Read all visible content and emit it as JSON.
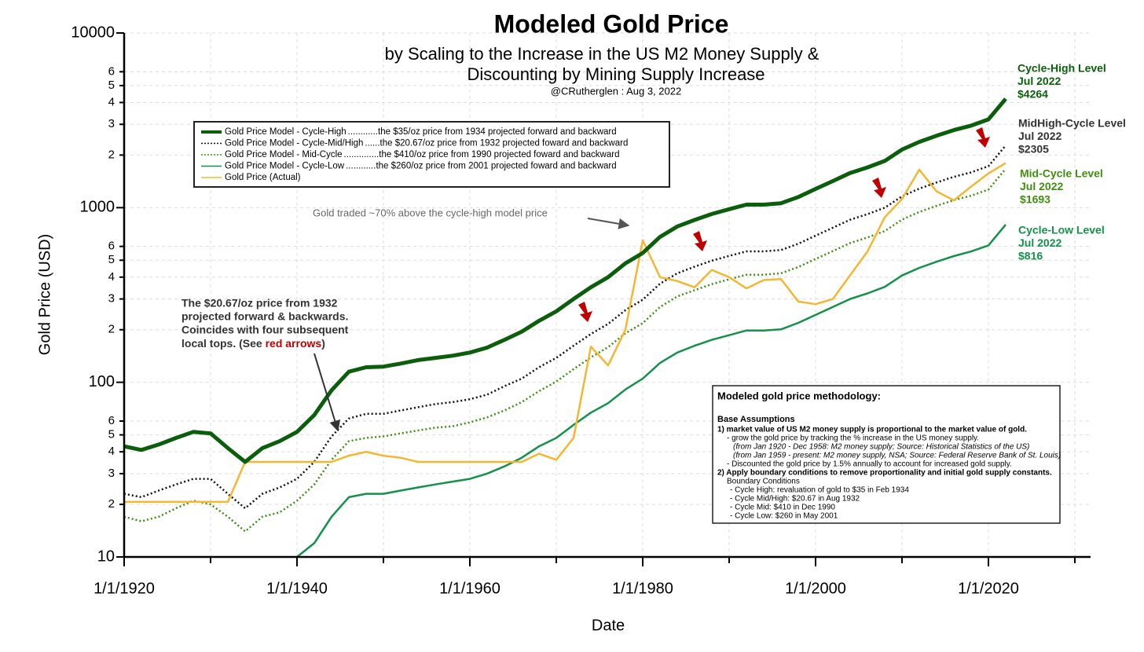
{
  "chart_data": {
    "type": "line",
    "title": "Modeled Gold Price",
    "subtitle_lines": [
      "by Scaling to the Increase in the US M2 Money Supply &",
      "Discounting by Mining Supply Increase"
    ],
    "author": "@CRutherglen : Aug 3, 2022",
    "x_label": "Date",
    "y_label": "Gold Price (USD)",
    "log_y": true,
    "grid": true,
    "xlim": [
      "1/1/1920",
      "1/1/2031"
    ],
    "xticks": [
      "1/1/1920",
      "1/1/1940",
      "1/1/1960",
      "1/1/1980",
      "1/1/2000",
      "1/1/2020"
    ],
    "xminorticks": [
      "1/1/1930",
      "1/1/1950",
      "1/1/1970",
      "1/1/1990",
      "1/1/2010",
      "1/1/2030"
    ],
    "ylim": [
      10,
      10000
    ],
    "yticks": [
      10,
      {
        "value": 20,
        "label": "2"
      },
      {
        "value": 30,
        "label": "3"
      },
      {
        "value": 40,
        "label": "4"
      },
      {
        "value": 50,
        "label": "5"
      },
      {
        "value": 60,
        "label": "6"
      },
      100,
      {
        "value": 200,
        "label": "2"
      },
      {
        "value": 300,
        "label": "3"
      },
      {
        "value": 400,
        "label": "4"
      },
      {
        "value": 500,
        "label": "5"
      },
      {
        "value": 600,
        "label": "6"
      },
      1000,
      {
        "value": 2000,
        "label": "2"
      },
      {
        "value": 3000,
        "label": "3"
      },
      {
        "value": 4000,
        "label": "4"
      },
      {
        "value": 5000,
        "label": "5"
      },
      {
        "value": 6000,
        "label": "6"
      },
      10000
    ],
    "x": [
      "1/1/1920",
      "1/1/1922",
      "1/1/1924",
      "1/1/1926",
      "1/1/1928",
      "1/1/1930",
      "1/1/1932",
      "1/1/1934",
      "1/1/1936",
      "1/1/1938",
      "1/1/1940",
      "1/1/1942",
      "1/1/1944",
      "1/1/1946",
      "1/1/1948",
      "1/1/1950",
      "1/1/1952",
      "1/1/1954",
      "1/1/1956",
      "1/1/1958",
      "1/1/1960",
      "1/1/1962",
      "1/1/1964",
      "1/1/1966",
      "1/1/1968",
      "1/1/1970",
      "1/1/1972",
      "1/1/1974",
      "1/1/1976",
      "1/1/1978",
      "1/1/1980",
      "1/1/1982",
      "1/1/1984",
      "1/1/1986",
      "1/1/1988",
      "1/1/1990",
      "1/1/1992",
      "1/1/1994",
      "1/1/1996",
      "1/1/1998",
      "1/1/2000",
      "1/1/2002",
      "1/1/2004",
      "1/1/2006",
      "1/1/2008",
      "1/1/2010",
      "1/1/2012",
      "1/1/2014",
      "1/1/2016",
      "1/1/2018",
      "1/1/2020",
      "1/1/2022"
    ],
    "legend_position": "upper left",
    "series": [
      {
        "name": "Gold Price Model - Cycle-High",
        "description": "............the $35/oz price from 1934 projected forward and backward",
        "color": "#0b5e0b",
        "line_style": "solid",
        "values": [
          43,
          41,
          44,
          48,
          52,
          51,
          42,
          35,
          42,
          46,
          52,
          65,
          90,
          115,
          122,
          123,
          128,
          134,
          138,
          142,
          148,
          158,
          175,
          195,
          225,
          255,
          300,
          350,
          400,
          480,
          550,
          680,
          780,
          850,
          920,
          980,
          1040,
          1040,
          1060,
          1150,
          1280,
          1420,
          1580,
          1700,
          1850,
          2150,
          2380,
          2580,
          2780,
          2950,
          3200,
          4200
        ]
      },
      {
        "name": "Gold Price Model - Cycle-Mid/High",
        "description": "......the $20.67/oz price from 1932 projected foward and backward",
        "color": "#111111",
        "line_style": "dotted",
        "values": [
          23,
          22,
          24,
          26,
          28,
          28,
          23,
          19,
          23,
          25,
          28,
          35,
          49,
          62,
          66,
          66,
          69,
          72,
          75,
          77,
          80,
          85,
          95,
          105,
          122,
          138,
          162,
          189,
          216,
          259,
          297,
          367,
          421,
          459,
          497,
          529,
          562,
          562,
          572,
          621,
          691,
          767,
          853,
          918,
          999,
          1161,
          1285,
          1393,
          1501,
          1593,
          1728,
          2270
        ]
      },
      {
        "name": "Gold Price Model - Mid-Cycle",
        "description": "..............the $410/oz price from 1990 projected foward and backward",
        "color": "#3f8f10",
        "line_style": "dotted",
        "values": [
          17,
          16,
          17,
          19,
          21,
          20,
          17,
          14,
          17,
          18,
          21,
          26,
          36,
          46,
          48,
          49,
          51,
          53,
          55,
          56,
          59,
          63,
          69,
          77,
          89,
          101,
          119,
          139,
          159,
          191,
          218,
          270,
          310,
          337,
          365,
          389,
          413,
          413,
          421,
          457,
          508,
          564,
          627,
          675,
          734,
          854,
          945,
          1024,
          1104,
          1171,
          1270,
          1670
        ]
      },
      {
        "name": "Gold Price Model - Cycle-Low",
        "description": "............the $260/oz price from 2001 projected foward and backward",
        "color": "#14914a",
        "line_style": "solid",
        "values": [
          null,
          null,
          null,
          null,
          null,
          null,
          null,
          null,
          null,
          null,
          10,
          12,
          17,
          22,
          23,
          23,
          24,
          25,
          26,
          27,
          28,
          30,
          33,
          37,
          43,
          48,
          57,
          67,
          76,
          91,
          105,
          129,
          148,
          162,
          175,
          186,
          198,
          198,
          201,
          219,
          243,
          270,
          300,
          323,
          352,
          409,
          452,
          490,
          528,
          561,
          608,
          800
        ]
      },
      {
        "name": "Gold Price (Actual)",
        "color": "#f5b731",
        "line_style": "solid",
        "values": [
          20.67,
          20.67,
          20.67,
          20.67,
          20.67,
          20.67,
          20.67,
          35,
          35,
          35,
          35,
          35,
          35,
          38,
          40,
          38,
          37,
          35,
          35,
          35,
          35,
          35,
          35,
          35,
          39,
          36,
          48,
          160,
          125,
          200,
          650,
          400,
          380,
          350,
          440,
          400,
          345,
          385,
          390,
          290,
          280,
          300,
          410,
          560,
          880,
          1120,
          1650,
          1240,
          1100,
          1320,
          1570,
          1800
        ]
      }
    ],
    "level_labels": [
      {
        "lines": [
          "Cycle-High Level",
          "Jul 2022",
          "$4264"
        ],
        "color": "#0b5e0b"
      },
      {
        "lines": [
          "MidHigh-Cycle Level",
          "Jul 2022",
          "$2305"
        ],
        "color": "#333333"
      },
      {
        "lines": [
          "Mid-Cycle Level",
          "Jul 2022",
          "$1693"
        ],
        "color": "#3f8f10"
      },
      {
        "lines": [
          "Cycle-Low Level",
          "Jul 2022",
          "$816"
        ],
        "color": "#14914a"
      }
    ],
    "annotation_peak": "Gold traded ~70% above the cycle-high model price",
    "annotation_1932": {
      "lines": [
        "The $20.67/oz price from 1932",
        "projected forward & backwards.",
        "Coincides with four subsequent"
      ],
      "last_line": [
        "local tops. (See ",
        "red arrows",
        ")"
      ]
    },
    "methodology": {
      "title": "Modeled gold price methodology:",
      "heading": "Base Assumptions",
      "lines": [
        "1) market value of US M2 money supply is proportional to the market value of gold.",
        "- grow the gold price by tracking the % increase in the US money supply.",
        "(from Jan 1920 - Dec 1958: M2 money supply; Source: Historical Statistics of the US)",
        "(from Jan 1959 - present: M2 money supply, NSA; Source: Federal Reserve Bank of St. Louis)",
        "- Discounted the gold price by 1.5% annually to account for increased gold supply.",
        "2) Apply boundary conditions to remove proportionality and initial gold supply constants.",
        "Boundary Conditions",
        "- Cycle High: revaluation of gold to $35 in Feb 1934",
        "- Cycle Mid/High: $20.67 in Aug 1932",
        "- Cycle Mid: $410 in Dec 1990",
        "- Cycle Low: $260 in May 2001"
      ]
    }
  }
}
